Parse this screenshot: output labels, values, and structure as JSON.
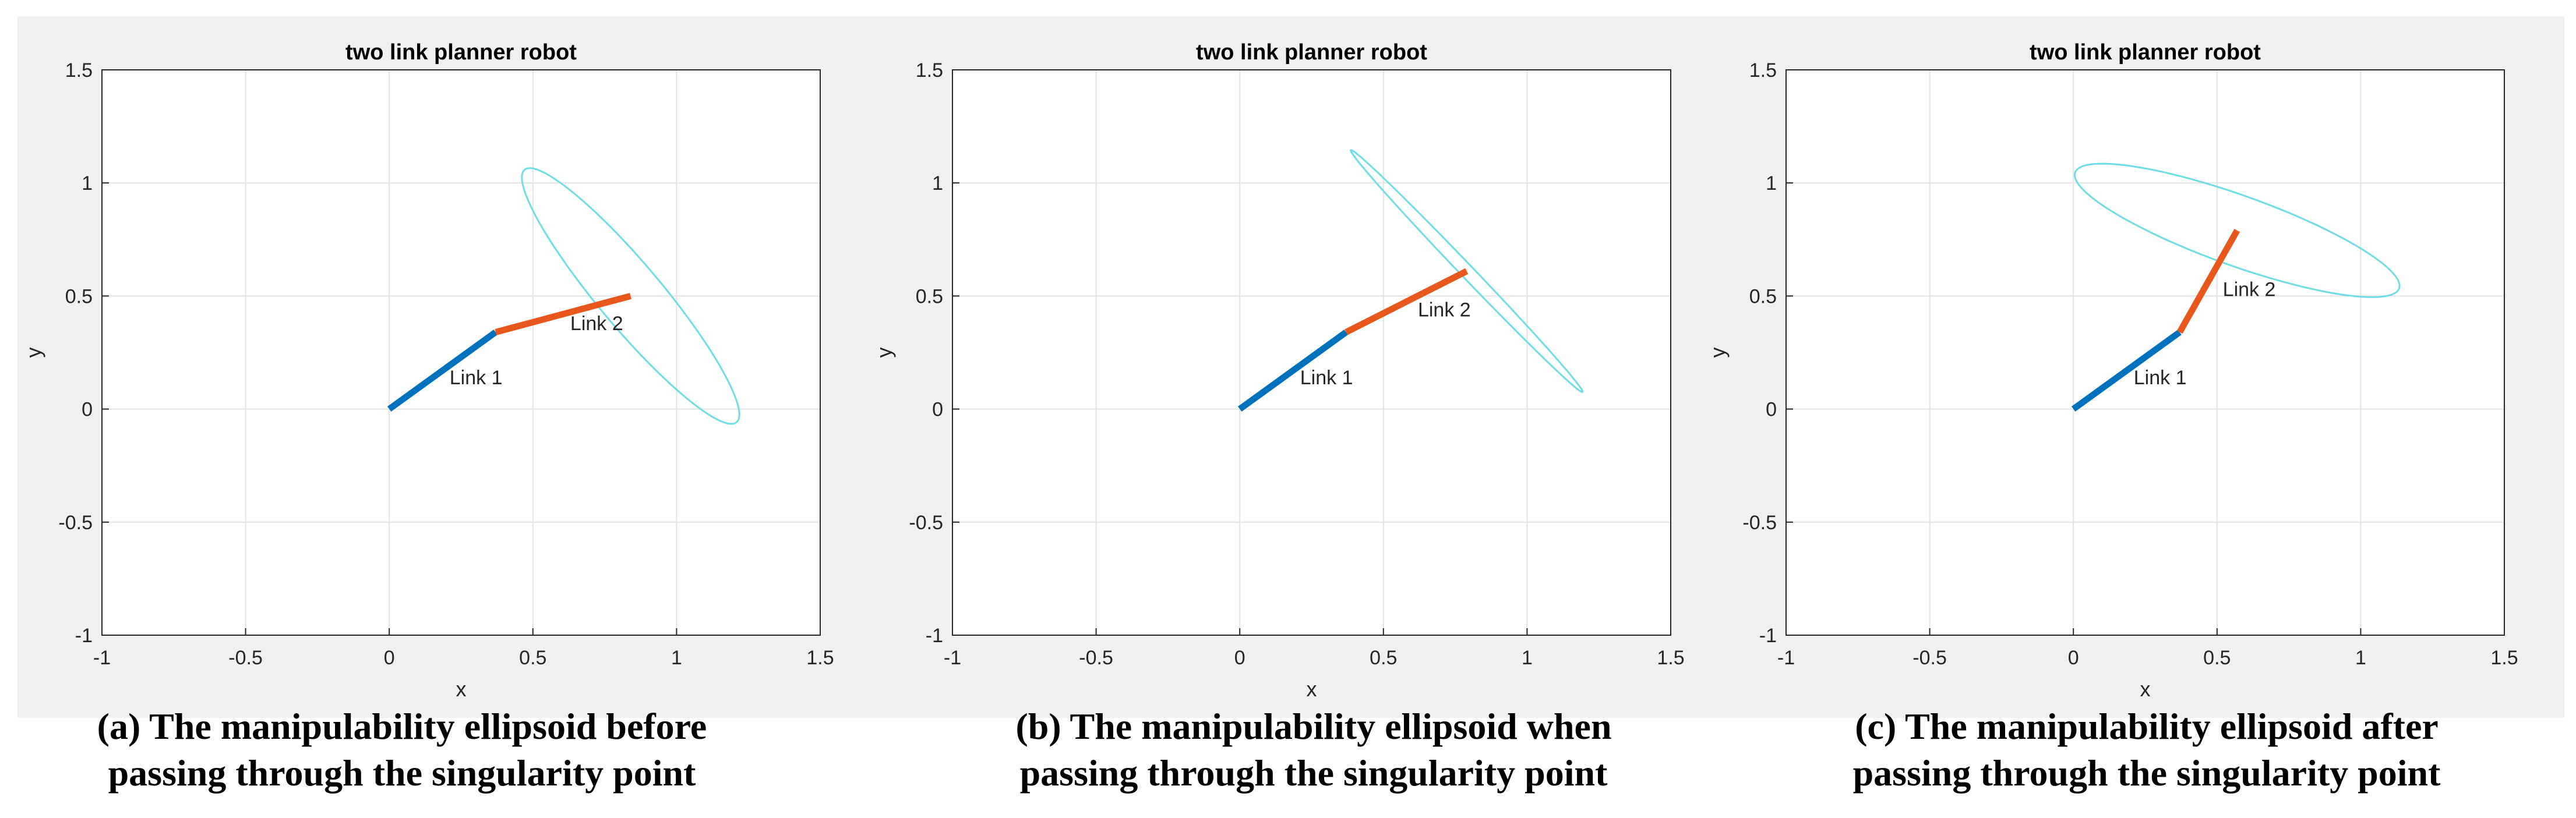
{
  "chart_data": [
    {
      "type": "line",
      "title": "two link planner robot",
      "xlabel": "x",
      "ylabel": "y",
      "xlim": [
        -1,
        1.5
      ],
      "ylim": [
        -1,
        1.5
      ],
      "xticks": [
        "-1",
        "-0.5",
        "0",
        "0.5",
        "1",
        "1.5"
      ],
      "yticks": [
        "-1",
        "-0.5",
        "0",
        "0.5",
        "1",
        "1.5"
      ],
      "grid": true,
      "series": [
        {
          "name": "Link 1",
          "color": "#0072bd",
          "x": [
            0,
            0.37
          ],
          "y": [
            0,
            0.34
          ]
        },
        {
          "name": "Link 2",
          "color": "#e8581c",
          "x": [
            0.37,
            0.84
          ],
          "y": [
            0.34,
            0.5
          ]
        }
      ],
      "ellipse": {
        "color": "#6fdde6",
        "center": [
          0.84,
          0.5
        ],
        "semi_major": 0.67,
        "semi_minor": 0.12,
        "angle_deg": -57
      },
      "annotations": [
        {
          "text": "Link 1",
          "x": 0.21,
          "y": 0.14
        },
        {
          "text": "Link 2",
          "x": 0.63,
          "y": 0.38
        }
      ]
    },
    {
      "type": "line",
      "title": "two link planner robot",
      "xlabel": "x",
      "ylabel": "y",
      "xlim": [
        -1,
        1.5
      ],
      "ylim": [
        -1,
        1.5
      ],
      "xticks": [
        "-1",
        "-0.5",
        "0",
        "0.5",
        "1",
        "1.5"
      ],
      "yticks": [
        "-1",
        "-0.5",
        "0",
        "0.5",
        "1",
        "1.5"
      ],
      "grid": true,
      "series": [
        {
          "name": "Link 1",
          "color": "#0072bd",
          "x": [
            0,
            0.37
          ],
          "y": [
            0,
            0.34
          ]
        },
        {
          "name": "Link 2",
          "color": "#e8581c",
          "x": [
            0.37,
            0.79
          ],
          "y": [
            0.34,
            0.61
          ]
        }
      ],
      "ellipse": {
        "color": "#6fdde6",
        "center": [
          0.79,
          0.61
        ],
        "semi_major": 0.67,
        "semi_minor": 0.025,
        "angle_deg": -53
      },
      "annotations": [
        {
          "text": "Link 1",
          "x": 0.21,
          "y": 0.14
        },
        {
          "text": "Link 2",
          "x": 0.62,
          "y": 0.44
        }
      ]
    },
    {
      "type": "line",
      "title": "two link planner robot",
      "xlabel": "x",
      "ylabel": "y",
      "xlim": [
        -1,
        1.5
      ],
      "ylim": [
        -1,
        1.5
      ],
      "xticks": [
        "-1",
        "-0.5",
        "0",
        "0.5",
        "1",
        "1.5"
      ],
      "yticks": [
        "-1",
        "-0.5",
        "0",
        "0.5",
        "1",
        "1.5"
      ],
      "grid": true,
      "series": [
        {
          "name": "Link 1",
          "color": "#0072bd",
          "x": [
            0,
            0.37
          ],
          "y": [
            0,
            0.34
          ]
        },
        {
          "name": "Link 2",
          "color": "#e8581c",
          "x": [
            0.37,
            0.57
          ],
          "y": [
            0.34,
            0.79
          ]
        }
      ],
      "ellipse": {
        "color": "#6fdde6",
        "center": [
          0.57,
          0.79
        ],
        "semi_major": 0.62,
        "semi_minor": 0.15,
        "angle_deg": -25
      },
      "annotations": [
        {
          "text": "Link 1",
          "x": 0.21,
          "y": 0.14
        },
        {
          "text": "Link 2",
          "x": 0.52,
          "y": 0.53
        }
      ]
    }
  ],
  "captions": [
    {
      "line1": "(a) The manipulability ellipsoid before",
      "line2": "passing through the singularity point"
    },
    {
      "line1": "(b) The manipulability ellipsoid when",
      "line2": "passing through the singularity point"
    },
    {
      "line1": "(c) The manipulability ellipsoid after",
      "line2": "passing through the singularity point"
    }
  ]
}
